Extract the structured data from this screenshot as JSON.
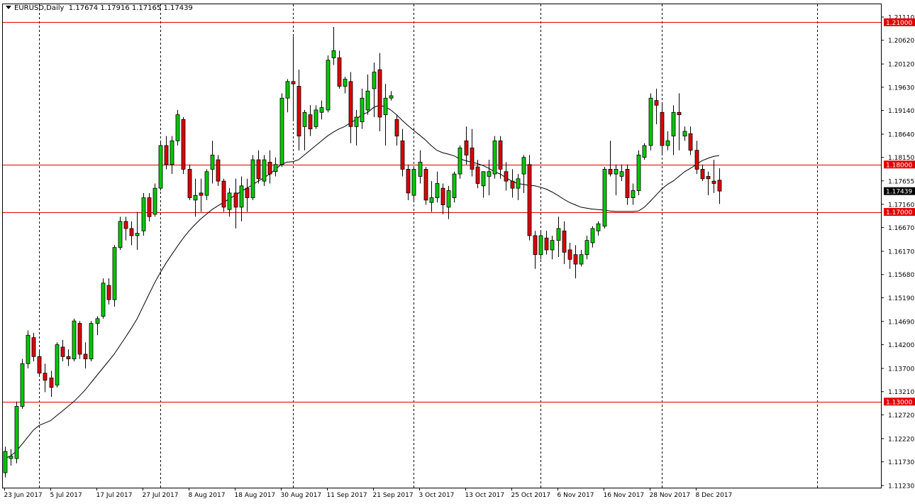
{
  "header": {
    "symbol": "EURUSD",
    "timeframe": "Daily",
    "title": "EURUSD,Daily",
    "open": "1.17674",
    "high": "1.17916",
    "low": "1.17165",
    "close": "1.17439"
  },
  "colors": {
    "background": "#ffffff",
    "bull_candle": "#00c800",
    "bear_candle": "#dc0000",
    "wick": "#000000",
    "level_line": "#e00000",
    "level_badge": "#e00000",
    "current_price_badge": "#000000",
    "moving_average": "#000000",
    "separator": "#000000"
  },
  "chart_data": {
    "type": "candlestick",
    "title": "EURUSD,Daily",
    "xlabel": "",
    "ylabel": "",
    "ylim": [
      1.1123,
      1.2111
    ],
    "grid": false,
    "legend": "none",
    "y_ticks": [
      "1.21110",
      "1.20620",
      "1.20120",
      "1.19630",
      "1.19140",
      "1.18640",
      "1.18150",
      "1.17655",
      "1.17160",
      "1.16670",
      "1.16170",
      "1.15680",
      "1.15190",
      "1.14690",
      "1.14200",
      "1.13700",
      "1.13210",
      "1.12720",
      "1.12220",
      "1.11730",
      "1.11230"
    ],
    "x_ticks": [
      {
        "label": "23 Jun 2017",
        "index": 0
      },
      {
        "label": "5 Jul 2017",
        "index": 8
      },
      {
        "label": "17 Jul 2017",
        "index": 16
      },
      {
        "label": "27 Jul 2017",
        "index": 24
      },
      {
        "label": "8 Aug 2017",
        "index": 32
      },
      {
        "label": "18 Aug 2017",
        "index": 40
      },
      {
        "label": "30 Aug 2017",
        "index": 48
      },
      {
        "label": "11 Sep 2017",
        "index": 56
      },
      {
        "label": "21 Sep 2017",
        "index": 64
      },
      {
        "label": "3 Oct 2017",
        "index": 72
      },
      {
        "label": "13 Oct 2017",
        "index": 80
      },
      {
        "label": "25 Oct 2017",
        "index": 88
      },
      {
        "label": "6 Nov 2017",
        "index": 96
      },
      {
        "label": "16 Nov 2017",
        "index": 104
      },
      {
        "label": "28 Nov 2017",
        "index": 112
      },
      {
        "label": "8 Dec 2017",
        "index": 120
      }
    ],
    "period_separators": [
      6,
      27,
      50,
      71,
      93,
      114,
      141
    ],
    "horizontal_levels": [
      {
        "label": "1.21000",
        "value": 1.21
      },
      {
        "label": "1.18000",
        "value": 1.18
      },
      {
        "label": "1.17000",
        "value": 1.17
      },
      {
        "label": "1.13000",
        "value": 1.13
      }
    ],
    "current_price": {
      "label": "1.17439",
      "value": 1.17439
    },
    "ohlc": [
      [
        1.115,
        1.1205,
        1.114,
        1.1195
      ],
      [
        1.118,
        1.12,
        1.1165,
        1.1185
      ],
      [
        1.118,
        1.13,
        1.117,
        1.129
      ],
      [
        1.129,
        1.139,
        1.1285,
        1.138
      ],
      [
        1.138,
        1.145,
        1.137,
        1.144
      ],
      [
        1.1435,
        1.1445,
        1.1385,
        1.1395
      ],
      [
        1.1395,
        1.141,
        1.1355,
        1.136
      ],
      [
        1.136,
        1.138,
        1.132,
        1.1345
      ],
      [
        1.135,
        1.1365,
        1.131,
        1.133
      ],
      [
        1.1335,
        1.1425,
        1.133,
        1.142
      ],
      [
        1.1415,
        1.143,
        1.1385,
        1.1395
      ],
      [
        1.1395,
        1.141,
        1.1375,
        1.139
      ],
      [
        1.139,
        1.1475,
        1.1385,
        1.147
      ],
      [
        1.1465,
        1.147,
        1.139,
        1.14
      ],
      [
        1.14,
        1.1425,
        1.137,
        1.139
      ],
      [
        1.139,
        1.147,
        1.1385,
        1.1465
      ],
      [
        1.1465,
        1.148,
        1.144,
        1.1475
      ],
      [
        1.148,
        1.156,
        1.1475,
        1.155
      ],
      [
        1.1545,
        1.156,
        1.1505,
        1.1515
      ],
      [
        1.1515,
        1.163,
        1.15,
        1.1625
      ],
      [
        1.1625,
        1.169,
        1.162,
        1.168
      ],
      [
        1.168,
        1.169,
        1.164,
        1.1665
      ],
      [
        1.1665,
        1.168,
        1.163,
        1.165
      ],
      [
        1.165,
        1.17,
        1.162,
        1.1655
      ],
      [
        1.166,
        1.174,
        1.165,
        1.173
      ],
      [
        1.173,
        1.174,
        1.168,
        1.169
      ],
      [
        1.1695,
        1.176,
        1.169,
        1.175
      ],
      [
        1.175,
        1.185,
        1.1745,
        1.184
      ],
      [
        1.184,
        1.186,
        1.179,
        1.18
      ],
      [
        1.18,
        1.186,
        1.178,
        1.185
      ],
      [
        1.185,
        1.1915,
        1.184,
        1.1905
      ],
      [
        1.1895,
        1.19,
        1.178,
        1.179
      ],
      [
        1.179,
        1.18,
        1.1725,
        1.173
      ],
      [
        1.1725,
        1.177,
        1.169,
        1.1735
      ],
      [
        1.174,
        1.177,
        1.17,
        1.1735
      ],
      [
        1.1735,
        1.179,
        1.1725,
        1.1785
      ],
      [
        1.179,
        1.185,
        1.176,
        1.182
      ],
      [
        1.181,
        1.182,
        1.1755,
        1.1765
      ],
      [
        1.1765,
        1.177,
        1.17,
        1.171
      ],
      [
        1.1705,
        1.175,
        1.169,
        1.174
      ],
      [
        1.174,
        1.177,
        1.1665,
        1.171
      ],
      [
        1.171,
        1.1775,
        1.168,
        1.1755
      ],
      [
        1.175,
        1.177,
        1.17,
        1.173
      ],
      [
        1.173,
        1.182,
        1.1725,
        1.181
      ],
      [
        1.181,
        1.183,
        1.176,
        1.177
      ],
      [
        1.1765,
        1.182,
        1.1755,
        1.181
      ],
      [
        1.1805,
        1.183,
        1.176,
        1.178
      ],
      [
        1.1785,
        1.1815,
        1.1775,
        1.18
      ],
      [
        1.18,
        1.195,
        1.1795,
        1.194
      ],
      [
        1.194,
        1.198,
        1.191,
        1.1975
      ],
      [
        1.1975,
        1.207,
        1.1895,
        1.197
      ],
      [
        1.1965,
        1.2,
        1.183,
        1.186
      ],
      [
        1.188,
        1.1915,
        1.183,
        1.191
      ],
      [
        1.1905,
        1.1925,
        1.186,
        1.1875
      ],
      [
        1.188,
        1.1925,
        1.1875,
        1.1915
      ],
      [
        1.191,
        1.1935,
        1.1895,
        1.192
      ],
      [
        1.1915,
        1.203,
        1.191,
        1.202
      ],
      [
        1.2025,
        1.209,
        1.201,
        1.204
      ],
      [
        1.2025,
        1.204,
        1.196,
        1.1965
      ],
      [
        1.1965,
        1.1985,
        1.195,
        1.198
      ],
      [
        1.1975,
        1.1995,
        1.1845,
        1.188
      ],
      [
        1.188,
        1.1915,
        1.184,
        1.19
      ],
      [
        1.189,
        1.196,
        1.1875,
        1.194
      ],
      [
        1.1915,
        1.199,
        1.1905,
        1.1955
      ],
      [
        1.196,
        1.2015,
        1.19,
        1.1995
      ],
      [
        1.2,
        1.2035,
        1.187,
        1.19
      ],
      [
        1.1905,
        1.197,
        1.184,
        1.194
      ],
      [
        1.194,
        1.1955,
        1.1935,
        1.1945
      ],
      [
        1.1895,
        1.1905,
        1.184,
        1.186
      ],
      [
        1.185,
        1.1875,
        1.1775,
        1.179
      ],
      [
        1.179,
        1.18,
        1.1725,
        1.174
      ],
      [
        1.1735,
        1.1795,
        1.1725,
        1.179
      ],
      [
        1.1775,
        1.183,
        1.176,
        1.1805
      ],
      [
        1.179,
        1.1795,
        1.1715,
        1.1725
      ],
      [
        1.172,
        1.1765,
        1.17,
        1.173
      ],
      [
        1.173,
        1.1785,
        1.172,
        1.176
      ],
      [
        1.175,
        1.176,
        1.1695,
        1.1715
      ],
      [
        1.171,
        1.1755,
        1.1685,
        1.1745
      ],
      [
        1.173,
        1.1785,
        1.172,
        1.178
      ],
      [
        1.178,
        1.184,
        1.177,
        1.1835
      ],
      [
        1.185,
        1.188,
        1.18,
        1.182
      ],
      [
        1.1835,
        1.1875,
        1.1775,
        1.179
      ],
      [
        1.1795,
        1.181,
        1.175,
        1.176
      ],
      [
        1.1755,
        1.1785,
        1.173,
        1.1785
      ],
      [
        1.1775,
        1.181,
        1.1735,
        1.1785
      ],
      [
        1.178,
        1.186,
        1.177,
        1.185
      ],
      [
        1.185,
        1.186,
        1.177,
        1.179
      ],
      [
        1.1785,
        1.1805,
        1.1745,
        1.1765
      ],
      [
        1.1765,
        1.179,
        1.173,
        1.175
      ],
      [
        1.175,
        1.178,
        1.1725,
        1.177
      ],
      [
        1.178,
        1.182,
        1.174,
        1.1815
      ],
      [
        1.18,
        1.182,
        1.164,
        1.165
      ],
      [
        1.165,
        1.166,
        1.158,
        1.161
      ],
      [
        1.161,
        1.166,
        1.16,
        1.165
      ],
      [
        1.1645,
        1.166,
        1.161,
        1.162
      ],
      [
        1.162,
        1.165,
        1.16,
        1.164
      ],
      [
        1.164,
        1.169,
        1.1605,
        1.1665
      ],
      [
        1.166,
        1.168,
        1.159,
        1.1615
      ],
      [
        1.162,
        1.1635,
        1.158,
        1.16
      ],
      [
        1.161,
        1.163,
        1.156,
        1.159
      ],
      [
        1.159,
        1.162,
        1.1585,
        1.161
      ],
      [
        1.161,
        1.165,
        1.16,
        1.164
      ],
      [
        1.1635,
        1.167,
        1.1625,
        1.1665
      ],
      [
        1.166,
        1.168,
        1.165,
        1.1675
      ],
      [
        1.167,
        1.1795,
        1.1665,
        1.179
      ],
      [
        1.179,
        1.185,
        1.1775,
        1.178
      ],
      [
        1.178,
        1.18,
        1.1735,
        1.179
      ],
      [
        1.1775,
        1.18,
        1.1765,
        1.1785
      ],
      [
        1.179,
        1.18,
        1.1715,
        1.173
      ],
      [
        1.173,
        1.176,
        1.1715,
        1.1745
      ],
      [
        1.1745,
        1.183,
        1.1735,
        1.182
      ],
      [
        1.1815,
        1.1845,
        1.181,
        1.184
      ],
      [
        1.184,
        1.195,
        1.183,
        1.194
      ],
      [
        1.1935,
        1.196,
        1.1885,
        1.1925
      ],
      [
        1.191,
        1.193,
        1.182,
        1.184
      ],
      [
        1.184,
        1.187,
        1.183,
        1.185
      ],
      [
        1.186,
        1.1925,
        1.182,
        1.191
      ],
      [
        1.191,
        1.195,
        1.183,
        1.1905
      ],
      [
        1.186,
        1.188,
        1.185,
        1.187
      ],
      [
        1.1865,
        1.188,
        1.182,
        1.183
      ],
      [
        1.183,
        1.185,
        1.178,
        1.179
      ],
      [
        1.179,
        1.18,
        1.1765,
        1.177
      ],
      [
        1.1775,
        1.1785,
        1.1735,
        1.177
      ],
      [
        1.1765,
        1.181,
        1.174,
        1.176
      ],
      [
        1.1767,
        1.1792,
        1.1717,
        1.1744
      ]
    ],
    "ma20": [
      1.118,
      1.1185,
      1.1195,
      1.121,
      1.1225,
      1.124,
      1.125,
      1.1255,
      1.126,
      1.127,
      1.128,
      1.129,
      1.13,
      1.1312,
      1.1325,
      1.134,
      1.1355,
      1.137,
      1.1385,
      1.14,
      1.1418,
      1.1436,
      1.1455,
      1.1475,
      1.15,
      1.1525,
      1.155,
      1.1572,
      1.1592,
      1.161,
      1.1628,
      1.1645,
      1.166,
      1.1673,
      1.1685,
      1.1695,
      1.1705,
      1.1713,
      1.172,
      1.1728,
      1.1735,
      1.1743,
      1.175,
      1.1757,
      1.1765,
      1.1772,
      1.178,
      1.179,
      1.18,
      1.1805,
      1.1806,
      1.181,
      1.182,
      1.183,
      1.184,
      1.185,
      1.186,
      1.1868,
      1.1875,
      1.188,
      1.1888,
      1.1895,
      1.1905,
      1.191,
      1.192,
      1.1925,
      1.1922,
      1.1915,
      1.1905,
      1.1893,
      1.1882,
      1.1872,
      1.1862,
      1.1852,
      1.184,
      1.183,
      1.1825,
      1.1822,
      1.1818,
      1.1812,
      1.1808,
      1.1805,
      1.1802,
      1.1798,
      1.1792,
      1.1785,
      1.178,
      1.1772,
      1.1765,
      1.176,
      1.1758,
      1.1756,
      1.1755,
      1.1752,
      1.1748,
      1.1742,
      1.1735,
      1.1727,
      1.172,
      1.1715,
      1.171,
      1.1708,
      1.1706,
      1.1705,
      1.1704,
      1.1702,
      1.1701,
      1.1701,
      1.1701,
      1.1701,
      1.1702,
      1.171,
      1.1722,
      1.1735,
      1.1748,
      1.1758,
      1.1765,
      1.1775,
      1.1785,
      1.1792,
      1.18,
      1.1808,
      1.1813,
      1.1817,
      1.1819
    ]
  }
}
